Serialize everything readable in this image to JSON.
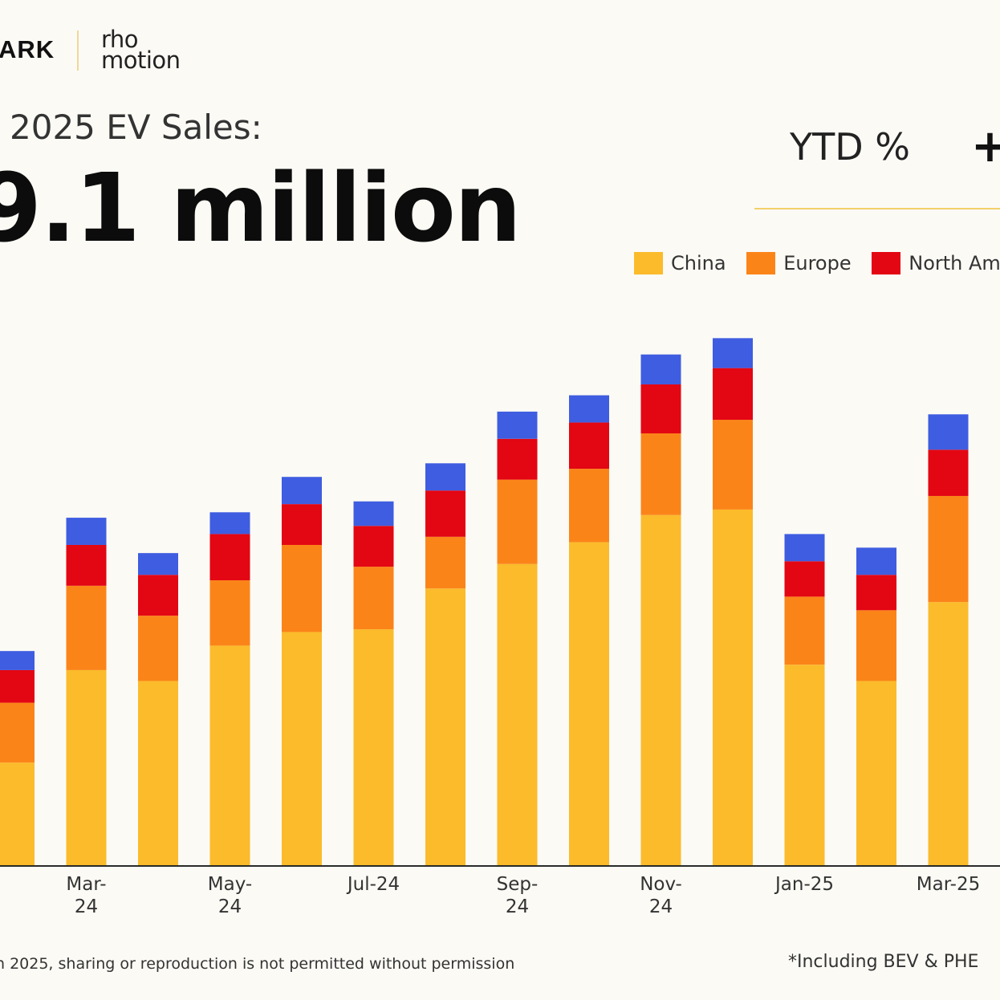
{
  "brand": {
    "left_logo_text": "ARK",
    "right_logo_line1": "rho",
    "right_logo_line2": "motion"
  },
  "header": {
    "subtitle": "2025 EV Sales:",
    "headline": "9.1 million",
    "ytd_label": "YTD %",
    "ytd_value": "+"
  },
  "legend": [
    {
      "name": "China",
      "color": "#fbbb2b"
    },
    {
      "name": "Europe",
      "color": "#fb8419"
    },
    {
      "name": "North Am",
      "color": "#e30613"
    }
  ],
  "footer": {
    "left_note": "n 2025, sharing or reproduction is not permitted without permission",
    "right_note": "*Including BEV & PHE"
  },
  "chart_data": {
    "type": "bar",
    "stacked": true,
    "x_tick_labels": [
      {
        "index": 1,
        "lines": [
          "Mar-",
          "24"
        ]
      },
      {
        "index": 3,
        "lines": [
          "May-",
          "24"
        ]
      },
      {
        "index": 5,
        "lines": [
          "Jul-24"
        ]
      },
      {
        "index": 7,
        "lines": [
          "Sep-",
          "24"
        ]
      },
      {
        "index": 9,
        "lines": [
          "Nov-",
          "24"
        ]
      },
      {
        "index": 11,
        "lines": [
          "Jan-25"
        ]
      },
      {
        "index": 13,
        "lines": [
          "Mar-25"
        ]
      }
    ],
    "series": [
      {
        "name": "China",
        "color": "#fbbb2b",
        "values": [
          0.38,
          0.72,
          0.68,
          0.81,
          0.86,
          0.87,
          1.02,
          1.11,
          1.19,
          1.29,
          1.31,
          0.74,
          0.68,
          0.97
        ]
      },
      {
        "name": "Europe",
        "color": "#fb8419",
        "values": [
          0.22,
          0.31,
          0.24,
          0.24,
          0.32,
          0.23,
          0.19,
          0.31,
          0.27,
          0.3,
          0.33,
          0.25,
          0.26,
          0.39
        ]
      },
      {
        "name": "North Am",
        "color": "#e30613",
        "values": [
          0.12,
          0.15,
          0.15,
          0.17,
          0.15,
          0.15,
          0.17,
          0.15,
          0.17,
          0.18,
          0.19,
          0.13,
          0.13,
          0.17
        ]
      },
      {
        "color": "#3f5de0",
        "values": [
          0.07,
          0.1,
          0.08,
          0.08,
          0.1,
          0.09,
          0.1,
          0.1,
          0.1,
          0.11,
          0.11,
          0.1,
          0.1,
          0.13
        ]
      }
    ],
    "ylim": [
      0,
      2.0
    ],
    "grid": false,
    "legend_position": "top-right"
  }
}
